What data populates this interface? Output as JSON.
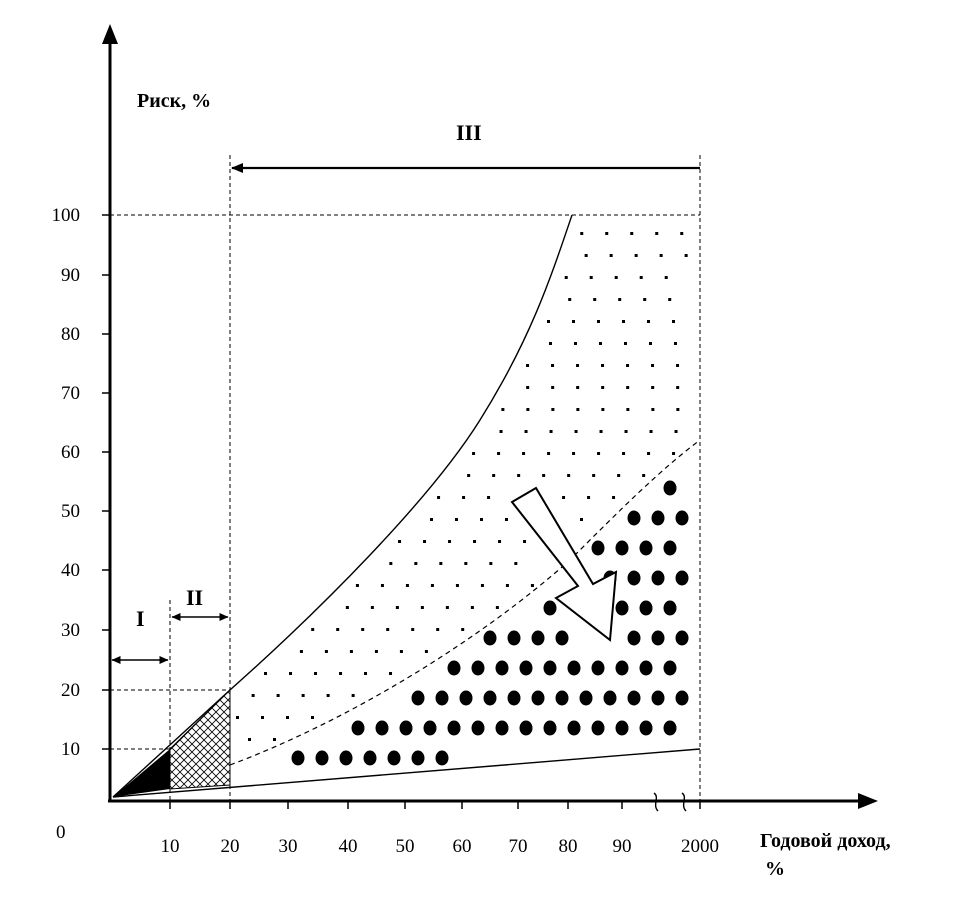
{
  "y_axis": {
    "label": "Риск, %",
    "ticks": [
      "10",
      "20",
      "30",
      "40",
      "50",
      "60",
      "70",
      "80",
      "90",
      "100"
    ]
  },
  "x_axis": {
    "label_line1": "Годовой доход,",
    "label_line2": "%",
    "origin": "0",
    "ticks": [
      "10",
      "20",
      "30",
      "40",
      "50",
      "60",
      "70",
      "80",
      "90",
      "2000"
    ]
  },
  "zones": {
    "zone1": "I",
    "zone2": "II",
    "zone3": "III"
  },
  "colors": {
    "ink": "#000000",
    "background": "#ffffff"
  },
  "fills": {
    "zone1": "solid black",
    "zone2": "cross-hatch",
    "upper_band": "small dots",
    "lower_band": "large dots"
  },
  "annotation": {
    "arrow": "hollow arrow pointing down-right"
  }
}
